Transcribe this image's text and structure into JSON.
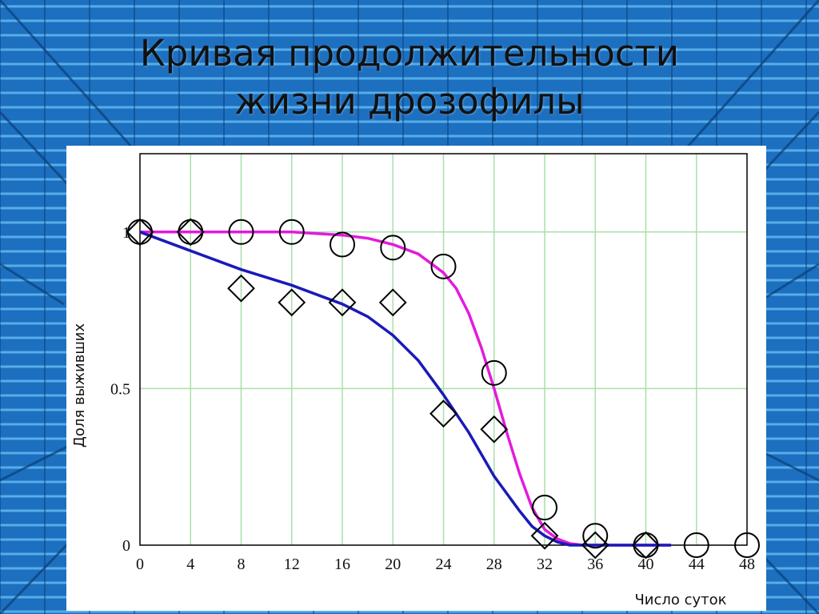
{
  "slide": {
    "title_line1": "Кривая продолжительности",
    "title_line2": "жизни дрозофилы"
  },
  "colors": {
    "background": "#1d6fc0",
    "grid_line": "#56aee8",
    "grid_dark": "#0a3f78",
    "plot_grid": "#a8e0a8",
    "series_circle_curve": "#e41adc",
    "series_diamond_curve": "#1a1ab8",
    "markers": "#000000"
  },
  "chart_data": {
    "type": "line",
    "xlabel": "Число суток",
    "ylabel": "Доля выживших",
    "xlim": [
      0,
      48
    ],
    "ylim": [
      0,
      1.25
    ],
    "x_ticks": [
      0,
      4,
      8,
      12,
      16,
      20,
      24,
      28,
      32,
      36,
      40,
      44,
      48
    ],
    "y_ticks": [
      0,
      0.5,
      1
    ],
    "y_tick_labels": [
      "0",
      "0.5",
      "1"
    ],
    "grid": true,
    "series": [
      {
        "marker": "circle",
        "color": "#e41adc",
        "points": [
          [
            0,
            1
          ],
          [
            4,
            1
          ],
          [
            8,
            1
          ],
          [
            12,
            1
          ],
          [
            16,
            0.96
          ],
          [
            20,
            0.95
          ],
          [
            24,
            0.89
          ],
          [
            28,
            0.55
          ],
          [
            32,
            0.12
          ],
          [
            36,
            0.03
          ],
          [
            40,
            0
          ],
          [
            44,
            0
          ],
          [
            48,
            0
          ]
        ],
        "curve": [
          [
            0,
            1
          ],
          [
            4,
            1
          ],
          [
            8,
            1
          ],
          [
            12,
            1
          ],
          [
            14,
            0.995
          ],
          [
            16,
            0.99
          ],
          [
            18,
            0.98
          ],
          [
            20,
            0.96
          ],
          [
            22,
            0.93
          ],
          [
            24,
            0.87
          ],
          [
            25,
            0.82
          ],
          [
            26,
            0.74
          ],
          [
            27,
            0.63
          ],
          [
            28,
            0.5
          ],
          [
            29,
            0.36
          ],
          [
            30,
            0.23
          ],
          [
            31,
            0.12
          ],
          [
            32,
            0.05
          ],
          [
            33,
            0.02
          ],
          [
            34,
            0.005
          ],
          [
            35,
            0
          ],
          [
            40,
            0
          ],
          [
            42,
            0
          ]
        ]
      },
      {
        "marker": "diamond",
        "color": "#1a1ab8",
        "points": [
          [
            0,
            1
          ],
          [
            4,
            1
          ],
          [
            8,
            0.82
          ],
          [
            12,
            0.775
          ],
          [
            16,
            0.775
          ],
          [
            20,
            0.775
          ],
          [
            24,
            0.42
          ],
          [
            28,
            0.37
          ],
          [
            32,
            0.03
          ],
          [
            36,
            0
          ],
          [
            40,
            0
          ]
        ],
        "curve": [
          [
            0,
            1
          ],
          [
            4,
            0.94
          ],
          [
            8,
            0.88
          ],
          [
            12,
            0.83
          ],
          [
            16,
            0.77
          ],
          [
            18,
            0.73
          ],
          [
            20,
            0.67
          ],
          [
            22,
            0.59
          ],
          [
            24,
            0.48
          ],
          [
            26,
            0.36
          ],
          [
            28,
            0.22
          ],
          [
            30,
            0.11
          ],
          [
            31,
            0.06
          ],
          [
            32,
            0.03
          ],
          [
            33,
            0.01
          ],
          [
            34,
            0
          ],
          [
            38,
            0
          ],
          [
            42,
            0
          ]
        ]
      }
    ]
  }
}
